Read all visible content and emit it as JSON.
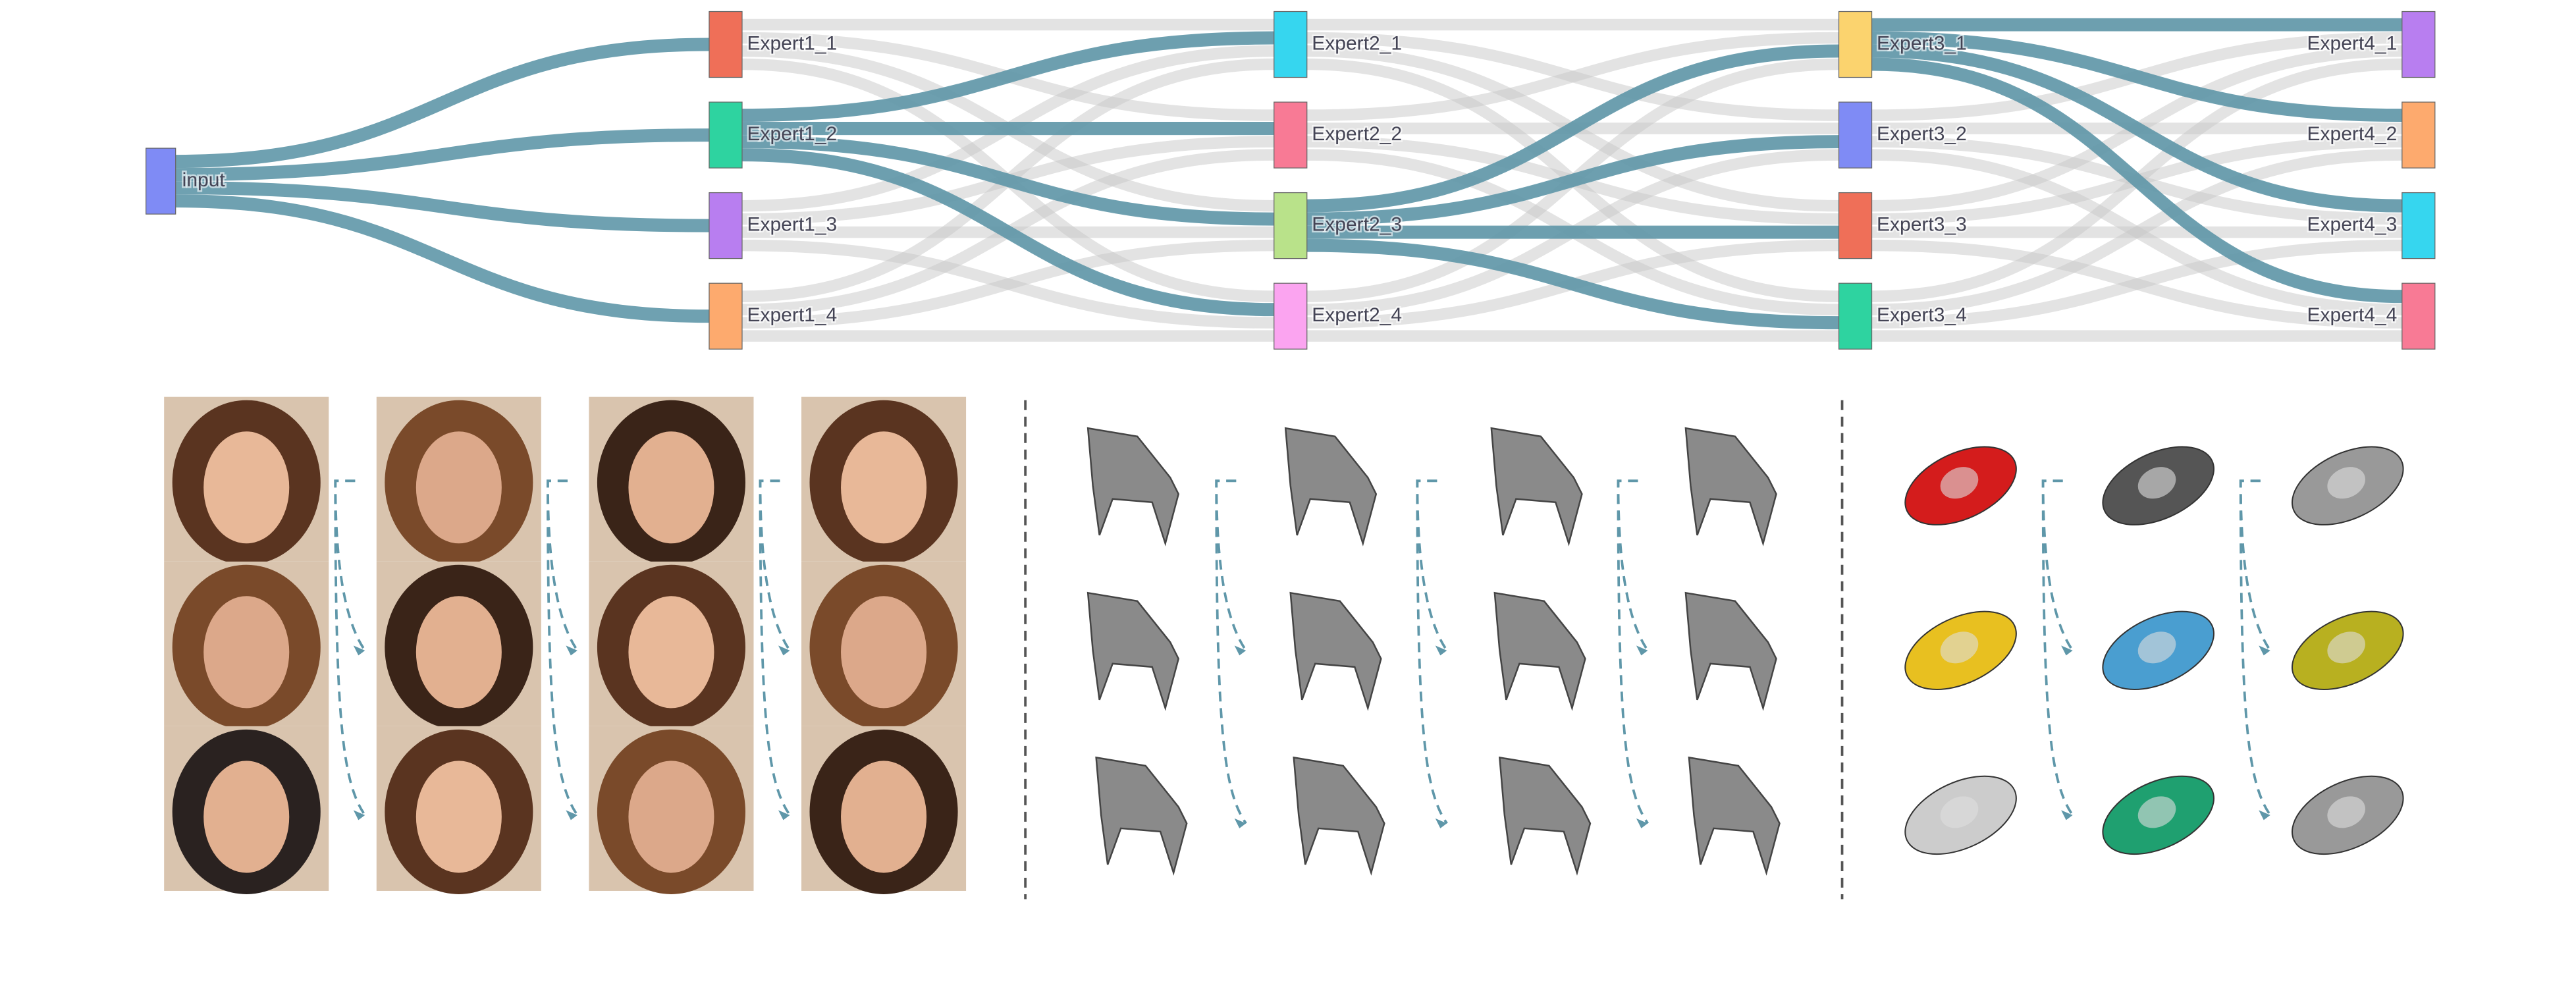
{
  "nodes": {
    "input": "input",
    "columns": [
      [
        "Expert1_1",
        "Expert1_2",
        "Expert1_3",
        "Expert1_4"
      ],
      [
        "Expert2_1",
        "Expert2_2",
        "Expert2_3",
        "Expert2_4"
      ],
      [
        "Expert3_1",
        "Expert3_2",
        "Expert3_3",
        "Expert3_4"
      ],
      [
        "Expert4_1",
        "Expert4_2",
        "Expert4_3",
        "Expert4_4"
      ]
    ]
  }
}
